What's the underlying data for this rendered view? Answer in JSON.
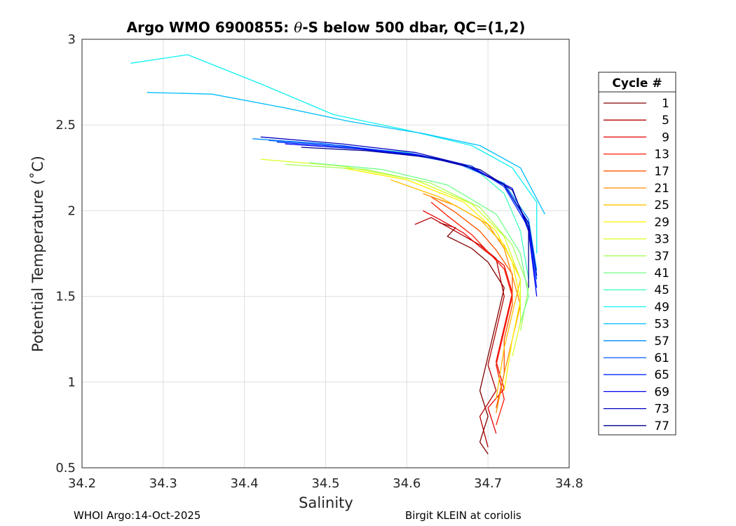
{
  "chart_data": {
    "type": "line",
    "title_prefix": "Argo WMO 6900855: ",
    "title_theta": "θ",
    "title_suffix": "-S below 500 dbar,  QC=(1,2)",
    "xlabel": "Salinity",
    "ylabel": "Potential Temperature (˚C)",
    "xlim": [
      34.2,
      34.8
    ],
    "ylim": [
      0.5,
      3
    ],
    "xticks": [
      "34.2",
      "34.3",
      "34.4",
      "34.5",
      "34.6",
      "34.7",
      "34.8"
    ],
    "yticks": [
      "0.5",
      "1",
      "1.5",
      "2",
      "2.5",
      "3"
    ],
    "grid": true,
    "legend": {
      "title": "Cycle #",
      "position": "right-outside",
      "entries": [
        "1",
        "5",
        "9",
        "13",
        "17",
        "21",
        "25",
        "29",
        "33",
        "37",
        "41",
        "45",
        "49",
        "53",
        "57",
        "61",
        "65",
        "69",
        "73",
        "77"
      ],
      "colors": [
        "#800000",
        "#b30000",
        "#e60000",
        "#ff1a00",
        "#ff5500",
        "#ff8c00",
        "#ffbf00",
        "#fff200",
        "#d9ff26",
        "#a6ff59",
        "#73ff8c",
        "#40ffbf",
        "#0df2f2",
        "#00bfff",
        "#008cff",
        "#0059ff",
        "#0026ff",
        "#0000f2",
        "#0000c0",
        "#00008f"
      ]
    },
    "series": [
      {
        "name": "1",
        "color": "#800000",
        "x": [
          34.64,
          34.66,
          34.65,
          34.68,
          34.7,
          34.72,
          34.71,
          34.7,
          34.69,
          34.7,
          34.69,
          34.7
        ],
        "y": [
          1.93,
          1.9,
          1.85,
          1.78,
          1.7,
          1.55,
          1.35,
          1.15,
          0.95,
          0.8,
          0.65,
          0.58
        ]
      },
      {
        "name": "5",
        "color": "#b30000",
        "x": [
          34.61,
          34.63,
          34.66,
          34.69,
          34.71,
          34.72,
          34.71,
          34.7,
          34.71,
          34.69,
          34.7
        ],
        "y": [
          1.92,
          1.96,
          1.88,
          1.8,
          1.72,
          1.5,
          1.3,
          1.1,
          0.95,
          0.8,
          0.62
        ]
      },
      {
        "name": "9",
        "color": "#e60000",
        "x": [
          34.62,
          34.64,
          34.67,
          34.69,
          34.72,
          34.73,
          34.72,
          34.71,
          34.72,
          34.7,
          34.71
        ],
        "y": [
          2.0,
          1.95,
          1.87,
          1.79,
          1.68,
          1.52,
          1.32,
          1.12,
          0.96,
          0.85,
          0.7
        ]
      },
      {
        "name": "13",
        "color": "#ff1a00",
        "x": [
          34.63,
          34.65,
          34.68,
          34.7,
          34.72,
          34.73,
          34.72,
          34.71,
          34.72,
          34.71
        ],
        "y": [
          2.05,
          1.97,
          1.86,
          1.76,
          1.66,
          1.5,
          1.3,
          1.1,
          0.9,
          0.75
        ]
      },
      {
        "name": "17",
        "color": "#ff5500",
        "x": [
          34.63,
          34.66,
          34.69,
          34.71,
          34.73,
          34.73,
          34.72,
          34.72,
          34.71
        ],
        "y": [
          2.08,
          1.99,
          1.88,
          1.77,
          1.63,
          1.45,
          1.25,
          1.05,
          0.85
        ]
      },
      {
        "name": "21",
        "color": "#ff8c00",
        "x": [
          34.62,
          34.66,
          34.7,
          34.72,
          34.73,
          34.74,
          34.73,
          34.72,
          34.71
        ],
        "y": [
          2.1,
          2.03,
          1.92,
          1.78,
          1.62,
          1.45,
          1.25,
          1.05,
          0.82
        ]
      },
      {
        "name": "25",
        "color": "#ffbf00",
        "x": [
          34.58,
          34.64,
          34.69,
          34.72,
          34.74,
          34.73,
          34.72,
          34.71
        ],
        "y": [
          2.18,
          2.08,
          1.95,
          1.8,
          1.6,
          1.4,
          1.2,
          0.9
        ]
      },
      {
        "name": "29",
        "color": "#fff200",
        "x": [
          34.52,
          34.6,
          34.67,
          34.71,
          34.73,
          34.74,
          34.73,
          34.72
        ],
        "y": [
          2.25,
          2.18,
          2.05,
          1.88,
          1.7,
          1.48,
          1.25,
          0.95
        ]
      },
      {
        "name": "33",
        "color": "#d9ff26",
        "x": [
          34.42,
          34.52,
          34.61,
          34.68,
          34.72,
          34.74,
          34.74,
          34.73
        ],
        "y": [
          2.3,
          2.26,
          2.18,
          2.04,
          1.85,
          1.6,
          1.35,
          1.15
        ]
      },
      {
        "name": "37",
        "color": "#a6ff59",
        "x": [
          34.45,
          34.55,
          34.63,
          34.69,
          34.73,
          34.75,
          34.74
        ],
        "y": [
          2.27,
          2.24,
          2.16,
          2.02,
          1.8,
          1.55,
          1.3
        ]
      },
      {
        "name": "41",
        "color": "#73ff8c",
        "x": [
          34.48,
          34.57,
          34.65,
          34.71,
          34.74,
          34.75,
          34.74
        ],
        "y": [
          2.28,
          2.24,
          2.15,
          1.98,
          1.75,
          1.5,
          1.35
        ]
      },
      {
        "name": "45",
        "color": "#40ffbf",
        "x": [
          34.5,
          34.6,
          34.68,
          34.72,
          34.74,
          34.75
        ],
        "y": [
          2.38,
          2.34,
          2.26,
          2.1,
          1.88,
          1.6
        ]
      },
      {
        "name": "49",
        "color": "#0df2f2",
        "x": [
          34.26,
          34.33,
          34.42,
          34.51,
          34.6,
          34.68,
          34.73,
          34.76,
          34.76
        ],
        "y": [
          2.86,
          2.91,
          2.74,
          2.56,
          2.47,
          2.38,
          2.25,
          2.05,
          1.75
        ]
      },
      {
        "name": "53",
        "color": "#00bfff",
        "x": [
          34.28,
          34.36,
          34.45,
          34.53,
          34.62,
          34.69,
          34.74,
          34.77
        ],
        "y": [
          2.69,
          2.68,
          2.6,
          2.52,
          2.45,
          2.38,
          2.25,
          1.98
        ]
      },
      {
        "name": "57",
        "color": "#008cff",
        "x": [
          34.41,
          34.5,
          34.59,
          34.66,
          34.72,
          34.75,
          34.76
        ],
        "y": [
          2.42,
          2.39,
          2.34,
          2.28,
          2.16,
          1.95,
          1.65
        ]
      },
      {
        "name": "61",
        "color": "#0059ff",
        "x": [
          34.43,
          34.52,
          34.6,
          34.67,
          34.72,
          34.75,
          34.76
        ],
        "y": [
          2.41,
          2.38,
          2.33,
          2.27,
          2.15,
          1.92,
          1.6
        ]
      },
      {
        "name": "65",
        "color": "#0026ff",
        "x": [
          34.44,
          34.53,
          34.61,
          34.68,
          34.72,
          34.75,
          34.76
        ],
        "y": [
          2.4,
          2.37,
          2.33,
          2.26,
          2.14,
          1.9,
          1.55
        ]
      },
      {
        "name": "69",
        "color": "#0000f2",
        "x": [
          34.45,
          34.54,
          34.62,
          34.68,
          34.73,
          34.75,
          34.76
        ],
        "y": [
          2.39,
          2.36,
          2.32,
          2.25,
          2.13,
          1.88,
          1.5
        ]
      },
      {
        "name": "73",
        "color": "#0000c0",
        "x": [
          34.42,
          34.52,
          34.61,
          34.67,
          34.72,
          34.75,
          34.76
        ],
        "y": [
          2.43,
          2.39,
          2.34,
          2.27,
          2.15,
          1.93,
          1.62
        ]
      },
      {
        "name": "77",
        "color": "#00008f",
        "x": [
          34.47,
          34.55,
          34.63,
          34.69,
          34.73,
          34.75,
          34.75
        ],
        "y": [
          2.37,
          2.35,
          2.31,
          2.24,
          2.12,
          1.9,
          1.55
        ]
      }
    ]
  },
  "footer": {
    "left": "WHOI Argo:14-Oct-2025",
    "right": "Birgit KLEIN at coriolis"
  }
}
